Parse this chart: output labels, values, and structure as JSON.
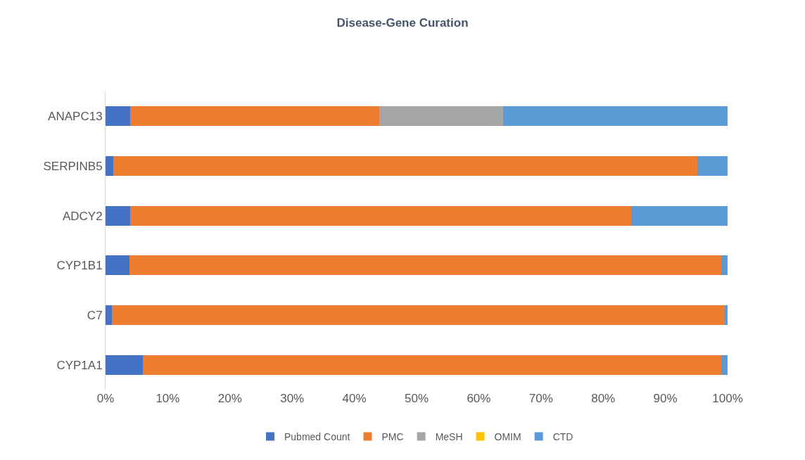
{
  "chart_data": {
    "type": "bar",
    "title": "Disease-Gene Curation",
    "orientation": "horizontal",
    "stacked": true,
    "categories": [
      "ANAPC13",
      "SERPINB5",
      "ADCY2",
      "CYP1B1",
      "C7",
      "CYP1A1"
    ],
    "series": [
      {
        "name": "Pubmed Count",
        "color": "#4472c4",
        "values": [
          4.0,
          1.3,
          4.0,
          3.8,
          1.0,
          6.0
        ]
      },
      {
        "name": "PMC",
        "color": "#ed7d31",
        "values": [
          40.0,
          93.8,
          80.5,
          95.2,
          98.6,
          93.0
        ]
      },
      {
        "name": "MeSH",
        "color": "#a5a5a5",
        "values": [
          19.9,
          0,
          0,
          0,
          0,
          0
        ]
      },
      {
        "name": "OMIM",
        "color": "#ffc000",
        "values": [
          0,
          0,
          0,
          0,
          0,
          0
        ]
      },
      {
        "name": "CTD",
        "color": "#5b9bd5",
        "values": [
          36.1,
          4.9,
          15.5,
          1.0,
          0.4,
          1.0
        ]
      }
    ],
    "xlim": [
      0,
      100
    ],
    "xticks": [
      {
        "value": 0,
        "label": "0%"
      },
      {
        "value": 10,
        "label": "10%"
      },
      {
        "value": 20,
        "label": "20%"
      },
      {
        "value": 30,
        "label": "30%"
      },
      {
        "value": 40,
        "label": "40%"
      },
      {
        "value": 50,
        "label": "50%"
      },
      {
        "value": 60,
        "label": "60%"
      },
      {
        "value": 70,
        "label": "70%"
      },
      {
        "value": 80,
        "label": "80%"
      },
      {
        "value": 90,
        "label": "90%"
      },
      {
        "value": 100,
        "label": "100%"
      }
    ],
    "legend": "bottom",
    "grid": false
  }
}
